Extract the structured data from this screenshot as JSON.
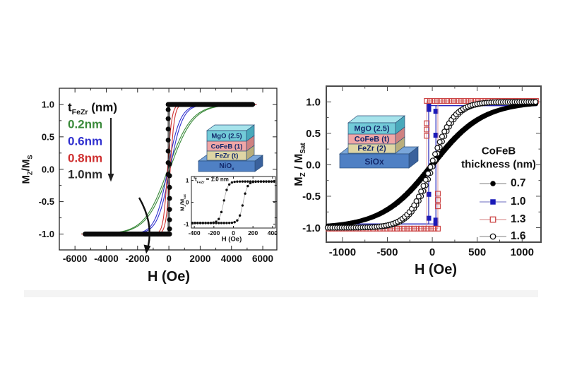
{
  "figure": {
    "background_color": "#ffffff",
    "bottom_edge_shadow_color": "#ebebeb",
    "left_panel": {
      "y_axis_label": [
        {
          "t": "M"
        },
        {
          "t": "Z",
          "sub": true
        },
        {
          "t": "/M"
        },
        {
          "t": "S",
          "sub": true
        }
      ],
      "x_axis_label": "H (Oe)",
      "legend": {
        "title": [
          {
            "t": "t"
          },
          {
            "t": "FeZr",
            "sub": true
          },
          {
            "t": " (nm)"
          }
        ],
        "items": [
          {
            "label": "0.2nm",
            "color": "#3a8a3a"
          },
          {
            "label": "0.6nm",
            "color": "#3030cf"
          },
          {
            "label": "0.8nm",
            "color": "#cf3030"
          },
          {
            "label": "1.0nm",
            "color": "#2e2e2e"
          }
        ],
        "arrow_direction": "down"
      },
      "stack_inset": {
        "label_color": "#14296b",
        "layers": [
          {
            "label": [
              {
                "t": "MgO (2.5)"
              }
            ],
            "face": "#72cbd8",
            "side": "#49a9bb",
            "top": "#a6e3eb"
          },
          {
            "label": [
              {
                "t": "CoFeB (1)"
              }
            ],
            "face": "#f0a6a6",
            "side": "#cf8181"
          },
          {
            "label": [
              {
                "t": "FeZr (t)"
              }
            ],
            "face": "#ded5a4",
            "side": "#b9ae7c"
          }
        ],
        "base": {
          "label": [
            {
              "t": "NiO"
            },
            {
              "t": "x",
              "sub": true
            }
          ],
          "face": "#4f80c4",
          "side": "#3a619c",
          "top": "#7aa6da"
        }
      },
      "inset_plot": {
        "title": [
          {
            "t": "t"
          },
          {
            "t": "FeZr",
            "sub": true
          },
          {
            "t": " = 1.0 nm"
          }
        ],
        "y_axis_label": [
          {
            "t": "M"
          },
          {
            "t": "z",
            "sub": true
          },
          {
            "t": "/M"
          },
          {
            "t": "sat",
            "sub": true
          }
        ],
        "x_axis_label": "H (Oe)"
      }
    },
    "right_panel": {
      "y_axis_label": [
        {
          "t": "M"
        },
        {
          "t": "Z",
          "sub": true
        },
        {
          "t": " / M"
        },
        {
          "t": "Sat",
          "sub": true
        }
      ],
      "x_axis_label": "H (Oe)",
      "legend": {
        "title_line1": "CoFeB",
        "title_line2": "thickness (nm)",
        "items": [
          {
            "label": "0.7",
            "marker": "filled-circle",
            "marker_color": "#000000",
            "line_color": "#999999"
          },
          {
            "label": "1.0",
            "marker": "filled-square",
            "marker_color": "#1a1ab8",
            "line_color": "#8888cc"
          },
          {
            "label": "1.3",
            "marker": "open-square",
            "marker_color": "#cc4444",
            "line_color": "#dd9999"
          },
          {
            "label": "1.6",
            "marker": "open-circle",
            "marker_color": "#111111",
            "line_color": "#999999"
          }
        ]
      },
      "stack_inset": {
        "label_color": "#14296b",
        "layers": [
          {
            "label": [
              {
                "t": "MgO (2.5)"
              }
            ],
            "face": "#72cbd8",
            "side": "#49a9bb",
            "top": "#a6e3eb"
          },
          {
            "label": [
              {
                "t": "CoFeB (t)"
              }
            ],
            "face": "#f0a6a6",
            "side": "#cf8181"
          },
          {
            "label": [
              {
                "t": "FeZr (2)"
              }
            ],
            "face": "#ded5a4",
            "side": "#b9ae7c"
          }
        ],
        "base": {
          "label": [
            {
              "t": "SiOx"
            }
          ],
          "face": "#4f80c4",
          "side": "#3a619c",
          "top": "#7aa6da"
        }
      }
    }
  },
  "chart_data": [
    {
      "id": "left-main",
      "type": "line",
      "description": "Out-of-plane magnetization loops MZ/MS vs H for MgO(2.5)/CoFeB(1)/FeZr(t)/NiOx stacks with tFeZr = 0.2, 0.6, 0.8, 1.0 nm",
      "xlabel": "H (Oe)",
      "ylabel": "MZ/MS",
      "xlim": [
        -7000,
        6900
      ],
      "ylim": [
        -1.245,
        1.25
      ],
      "x_ticks": {
        "values": [
          -6000,
          -4000,
          -2000,
          0,
          2000,
          4000,
          6000
        ],
        "labels": [
          "-6000",
          "-4000",
          "-2000",
          "0",
          "2000",
          "4000",
          "6000"
        ]
      },
      "y_ticks": {
        "values": [
          1,
          0.5,
          0,
          -0.5,
          -1
        ],
        "labels": [
          "1.0",
          "0.5",
          "0.0",
          "-0.5",
          "-1.0"
        ]
      },
      "x_minor_step": 1000,
      "y_minor_step": 0.25,
      "series": [
        {
          "name": "tFeZr = 0.2 nm",
          "kind": "s-curve",
          "transition_width_oe": 1500,
          "coercivity_oe": 60,
          "saturation": 1.0,
          "h_max_oe": 5600,
          "color": "#3a8a3a",
          "line_width": 1.1
        },
        {
          "name": "tFeZr = 0.6 nm",
          "kind": "s-curve",
          "transition_width_oe": 800,
          "coercivity_oe": 70,
          "saturation": 1.0,
          "h_max_oe": 5600,
          "color": "#3030cf",
          "line_width": 1.1
        },
        {
          "name": "tFeZr = 0.8 nm",
          "kind": "s-curve",
          "transition_width_oe": 270,
          "coercivity_oe": 85,
          "saturation": 1.0,
          "h_max_oe": 5600,
          "color": "#cf3030",
          "line_width": 1.1
        },
        {
          "name": "tFeZr = 1.0 nm",
          "kind": "square-loop",
          "coercivity_oe": 45,
          "saturation": 1.0,
          "h_max_oe": 5400,
          "color": "#0a0a0a",
          "line_width": 1,
          "marker": {
            "shape": "circle",
            "fill": "#0a0a0a",
            "size": 7
          },
          "row_marker_step_oe": 58,
          "vertical_marker_levels": [
            0.92,
            0.78,
            0.62,
            0.45,
            0.28,
            0.1,
            -0.08
          ]
        }
      ]
    },
    {
      "id": "left-inset",
      "type": "line",
      "description": "Zoomed hysteresis loop for tFeZr = 1.0 nm, coercivity about 100 Oe",
      "xlabel": "H (Oe)",
      "ylabel": "Mz/Msat",
      "xlim": [
        -430,
        430
      ],
      "ylim": [
        -1.18,
        1.18
      ],
      "x_ticks": {
        "values": [
          -400,
          -200,
          0,
          200,
          400
        ],
        "labels": [
          "-400",
          "-200",
          "0",
          "200",
          "400"
        ]
      },
      "y_ticks": {
        "values": [
          1,
          0,
          -1
        ],
        "labels": [
          "1",
          "0",
          "-1"
        ]
      },
      "series": [
        {
          "name": "tFeZr = 1.0 nm",
          "kind": "s-curve",
          "transition_width_oe": 45,
          "coercivity_oe": 100,
          "saturation": 0.95,
          "h_max_oe": 420,
          "color": "#9a9a9a",
          "line_width": 0.7,
          "marker": {
            "shape": "circle",
            "fill": "#111111",
            "size": 3.4
          },
          "marker_step_oe": 27
        }
      ]
    },
    {
      "id": "right-main",
      "type": "line",
      "description": "MZ/MSat vs H for MgO(2.5)/CoFeB(t)/FeZr(2)/SiOx stacks with CoFeB thickness 0.7, 1.0, 1.3, 1.6 nm",
      "xlabel": "H (Oe)",
      "ylabel": "MZ / MSat",
      "xlim": [
        -1180,
        1210
      ],
      "ylim": [
        -1.23,
        1.25
      ],
      "x_ticks": {
        "values": [
          -1000,
          -500,
          0,
          500,
          1000
        ],
        "labels": [
          "-1000",
          "-500",
          "0",
          "500",
          "1000"
        ]
      },
      "y_ticks": {
        "values": [
          1,
          0.5,
          0,
          -0.5,
          -1
        ],
        "labels": [
          "1.0",
          "0.5",
          "0.0",
          "-0.5",
          "-1.0"
        ]
      },
      "x_minor_step": 250,
      "y_minor_step": 0.25,
      "series": [
        {
          "name": "1.0",
          "kind": "square-loop",
          "coercivity_oe": 40,
          "saturation": 0.94,
          "h_max_oe": 1160,
          "color": "#2222bb",
          "line_width": 1.2,
          "marker": {
            "shape": "square",
            "fill": "#1a1ab8",
            "size": 7
          },
          "row_marker_step_oe": 99999,
          "vertical_marker_levels": [
            0.88,
            -0.47,
            -0.85
          ]
        },
        {
          "name": "1.3",
          "kind": "square-loop",
          "coercivity_oe": 62,
          "saturation": 1.015,
          "h_max_oe": 1160,
          "color": "#dd9494",
          "line_width": 0.9,
          "marker": {
            "shape": "square",
            "stroke": "#cc4444",
            "stroke_width": 1.2,
            "fill": "none",
            "size": 6.8
          },
          "row_marker_step_oe": 38,
          "vertical_marker_levels": [
            0.66,
            0.56,
            0.46
          ]
        },
        {
          "name": "0.7",
          "kind": "s-curve",
          "transition_width_oe": 560,
          "coercivity_oe": 12,
          "saturation": 1.0,
          "h_max_oe": 1165,
          "color": "#000000",
          "line_width": 0.8,
          "marker": {
            "shape": "circle",
            "fill": "#000000",
            "size": 6
          },
          "marker_step_oe": 16
        },
        {
          "name": "1.6",
          "kind": "s-curve",
          "transition_width_oe": 250,
          "coercivity_oe": 12,
          "saturation": 1.0,
          "h_max_oe": 1165,
          "color": "#aaaaaa",
          "line_width": 0,
          "marker": {
            "shape": "circle",
            "fill": "#ffffff",
            "stroke": "#111111",
            "stroke_width": 1.2,
            "size": 6.8
          },
          "marker_step_oe": 26
        }
      ]
    }
  ]
}
